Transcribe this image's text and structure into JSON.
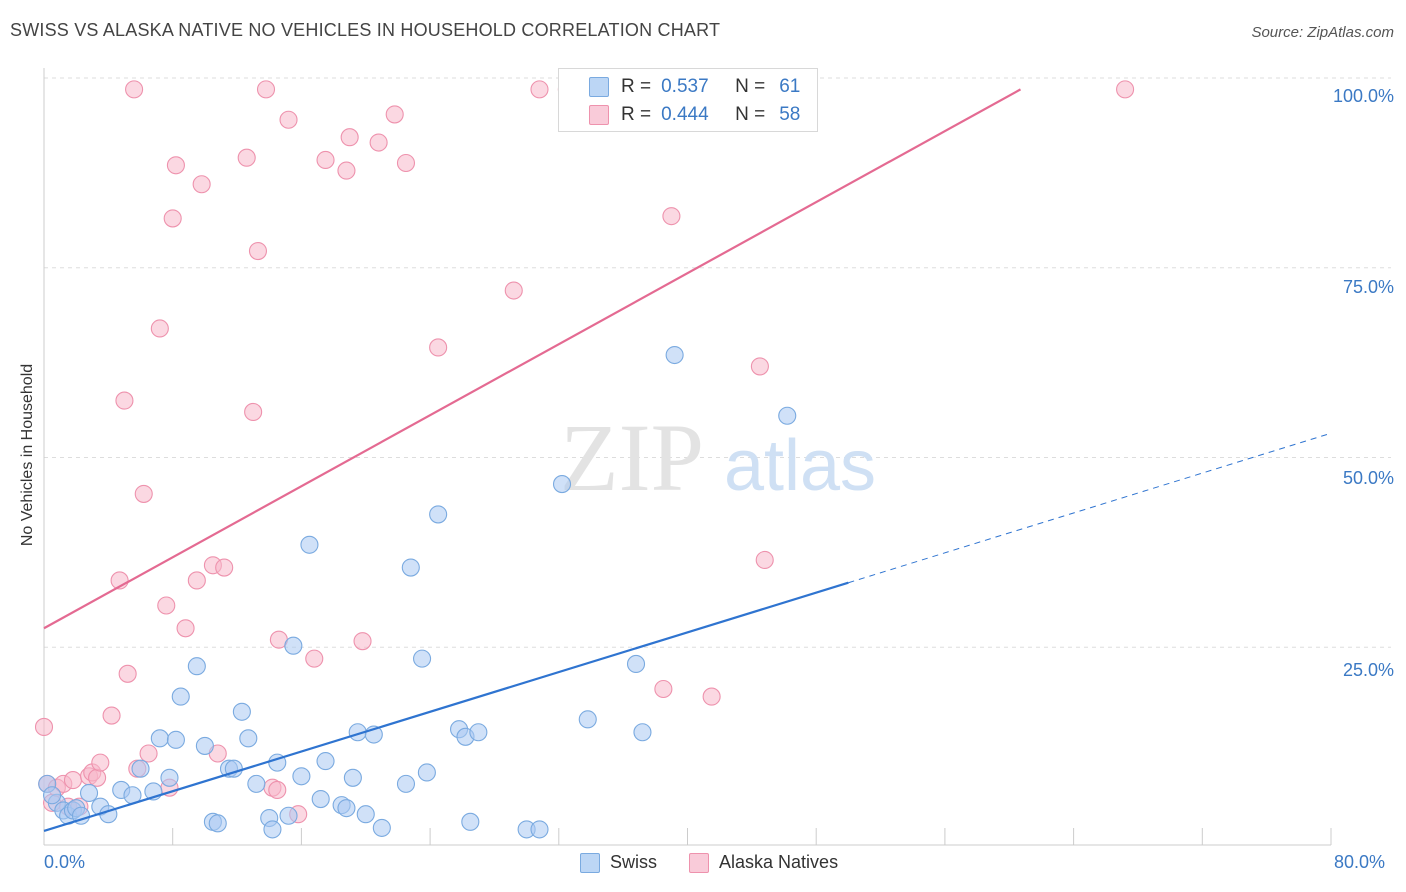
{
  "header": {
    "title": "SWISS VS ALASKA NATIVE NO VEHICLES IN HOUSEHOLD CORRELATION CHART",
    "source": "Source: ZipAtlas.com"
  },
  "watermark": {
    "zip": "ZIP",
    "atlas": "atlas"
  },
  "legend": {
    "swiss": {
      "r_label": "R =",
      "r_value": "0.537",
      "n_label": "N =",
      "n_value": "61"
    },
    "alaska": {
      "r_label": "R =",
      "r_value": "0.444",
      "n_label": "N =",
      "n_value": "58"
    }
  },
  "colors": {
    "swiss_fill": "#aac9f2",
    "swiss_stroke": "#7aaae0",
    "swiss_line": "#2f74d0",
    "alaska_fill": "#f7b8cb",
    "alaska_stroke": "#ee92ad",
    "alaska_line": "#e46a92",
    "tick_text": "#3b79c4",
    "grid": "#dddddd"
  },
  "chart_data": {
    "type": "scatter",
    "title": "SWISS VS ALASKA NATIVE NO VEHICLES IN HOUSEHOLD CORRELATION CHART",
    "xlabel": "",
    "ylabel": "No Vehicles in Household",
    "xlim": [
      0,
      80
    ],
    "ylim": [
      0,
      100
    ],
    "x_tick_labels": [
      "0.0%",
      "80.0%"
    ],
    "y_tick_labels": [
      "25.0%",
      "50.0%",
      "75.0%",
      "100.0%"
    ],
    "y_ticks": [
      25,
      50,
      75,
      100
    ],
    "grid": true,
    "legend_position": "top-center",
    "series": [
      {
        "name": "Swiss",
        "color": "#aac9f2",
        "r": 0.537,
        "n": 61,
        "trend": {
          "x0": 0,
          "y0": 0.8,
          "x1": 50,
          "y1": 33.5,
          "dashed_to_x": 80,
          "dashed_to_y": 53.2
        },
        "points": [
          [
            0.2,
            7.0
          ],
          [
            0.8,
            4.5
          ],
          [
            1.2,
            3.5
          ],
          [
            1.5,
            2.8
          ],
          [
            1.8,
            3.5
          ],
          [
            2.0,
            3.8
          ],
          [
            2.3,
            2.8
          ],
          [
            2.8,
            5.8
          ],
          [
            3.5,
            4.0
          ],
          [
            4.0,
            3.0
          ],
          [
            4.8,
            6.2
          ],
          [
            5.5,
            5.5
          ],
          [
            6.0,
            9.0
          ],
          [
            6.8,
            6.0
          ],
          [
            7.2,
            13.0
          ],
          [
            7.8,
            7.8
          ],
          [
            8.2,
            12.8
          ],
          [
            8.5,
            18.5
          ],
          [
            9.5,
            22.5
          ],
          [
            10.0,
            12.0
          ],
          [
            10.5,
            2.0
          ],
          [
            10.8,
            1.8
          ],
          [
            11.5,
            9.0
          ],
          [
            11.8,
            9.0
          ],
          [
            12.3,
            16.5
          ],
          [
            12.7,
            13.0
          ],
          [
            13.2,
            7.0
          ],
          [
            14.0,
            2.5
          ],
          [
            14.2,
            1.0
          ],
          [
            14.5,
            9.8
          ],
          [
            15.2,
            2.8
          ],
          [
            15.5,
            25.2
          ],
          [
            16.0,
            8.0
          ],
          [
            16.5,
            38.5
          ],
          [
            17.2,
            5.0
          ],
          [
            17.5,
            10.0
          ],
          [
            18.5,
            4.2
          ],
          [
            18.8,
            3.8
          ],
          [
            19.2,
            7.8
          ],
          [
            19.5,
            13.8
          ],
          [
            20.0,
            3.0
          ],
          [
            20.5,
            13.5
          ],
          [
            21.0,
            1.2
          ],
          [
            22.5,
            7.0
          ],
          [
            22.8,
            35.5
          ],
          [
            23.5,
            23.5
          ],
          [
            23.8,
            8.5
          ],
          [
            24.5,
            42.5
          ],
          [
            25.8,
            14.2
          ],
          [
            26.2,
            13.2
          ],
          [
            26.5,
            2.0
          ],
          [
            27.0,
            13.8
          ],
          [
            30.0,
            1.0
          ],
          [
            30.8,
            1.0
          ],
          [
            32.2,
            46.5
          ],
          [
            33.8,
            15.5
          ],
          [
            36.8,
            22.8
          ],
          [
            37.2,
            13.8
          ],
          [
            39.2,
            63.5
          ],
          [
            46.2,
            55.5
          ],
          [
            0.5,
            5.5
          ]
        ]
      },
      {
        "name": "Alaska Natives",
        "color": "#f7b8cb",
        "r": 0.444,
        "n": 58,
        "trend": {
          "x0": 0,
          "y0": 27.5,
          "x1": 60.7,
          "y1": 98.5
        },
        "points": [
          [
            0.0,
            14.5
          ],
          [
            0.2,
            7.0
          ],
          [
            0.5,
            4.5
          ],
          [
            0.8,
            6.5
          ],
          [
            1.2,
            7.0
          ],
          [
            1.5,
            4.0
          ],
          [
            1.8,
            7.5
          ],
          [
            2.2,
            4.0
          ],
          [
            2.8,
            8.0
          ],
          [
            3.0,
            8.5
          ],
          [
            3.3,
            7.8
          ],
          [
            3.5,
            9.8
          ],
          [
            4.2,
            16.0
          ],
          [
            4.7,
            33.8
          ],
          [
            5.0,
            57.5
          ],
          [
            5.2,
            21.5
          ],
          [
            5.6,
            98.5
          ],
          [
            5.8,
            9.0
          ],
          [
            6.2,
            45.2
          ],
          [
            6.5,
            11.0
          ],
          [
            7.2,
            67.0
          ],
          [
            7.6,
            30.5
          ],
          [
            7.8,
            6.5
          ],
          [
            8.0,
            81.5
          ],
          [
            8.2,
            88.5
          ],
          [
            8.8,
            27.5
          ],
          [
            9.5,
            33.8
          ],
          [
            9.8,
            86.0
          ],
          [
            10.5,
            35.8
          ],
          [
            10.8,
            11.0
          ],
          [
            11.2,
            35.5
          ],
          [
            12.6,
            89.5
          ],
          [
            13.0,
            56.0
          ],
          [
            13.3,
            77.2
          ],
          [
            13.8,
            98.5
          ],
          [
            14.2,
            6.5
          ],
          [
            14.5,
            6.2
          ],
          [
            14.6,
            26.0
          ],
          [
            15.2,
            94.5
          ],
          [
            15.8,
            3.0
          ],
          [
            16.8,
            23.5
          ],
          [
            17.5,
            89.2
          ],
          [
            18.8,
            87.8
          ],
          [
            19.0,
            92.2
          ],
          [
            19.8,
            25.8
          ],
          [
            20.8,
            91.5
          ],
          [
            21.8,
            95.2
          ],
          [
            22.5,
            88.8
          ],
          [
            24.5,
            64.5
          ],
          [
            29.2,
            72.0
          ],
          [
            30.8,
            98.5
          ],
          [
            32.5,
            98.5
          ],
          [
            39.0,
            81.8
          ],
          [
            38.5,
            19.5
          ],
          [
            41.5,
            18.5
          ],
          [
            44.5,
            62.0
          ],
          [
            44.8,
            36.5
          ],
          [
            67.2,
            98.5
          ]
        ]
      }
    ]
  },
  "bottom_legend": {
    "swiss_label": "Swiss",
    "alaska_label": "Alaska Natives"
  }
}
